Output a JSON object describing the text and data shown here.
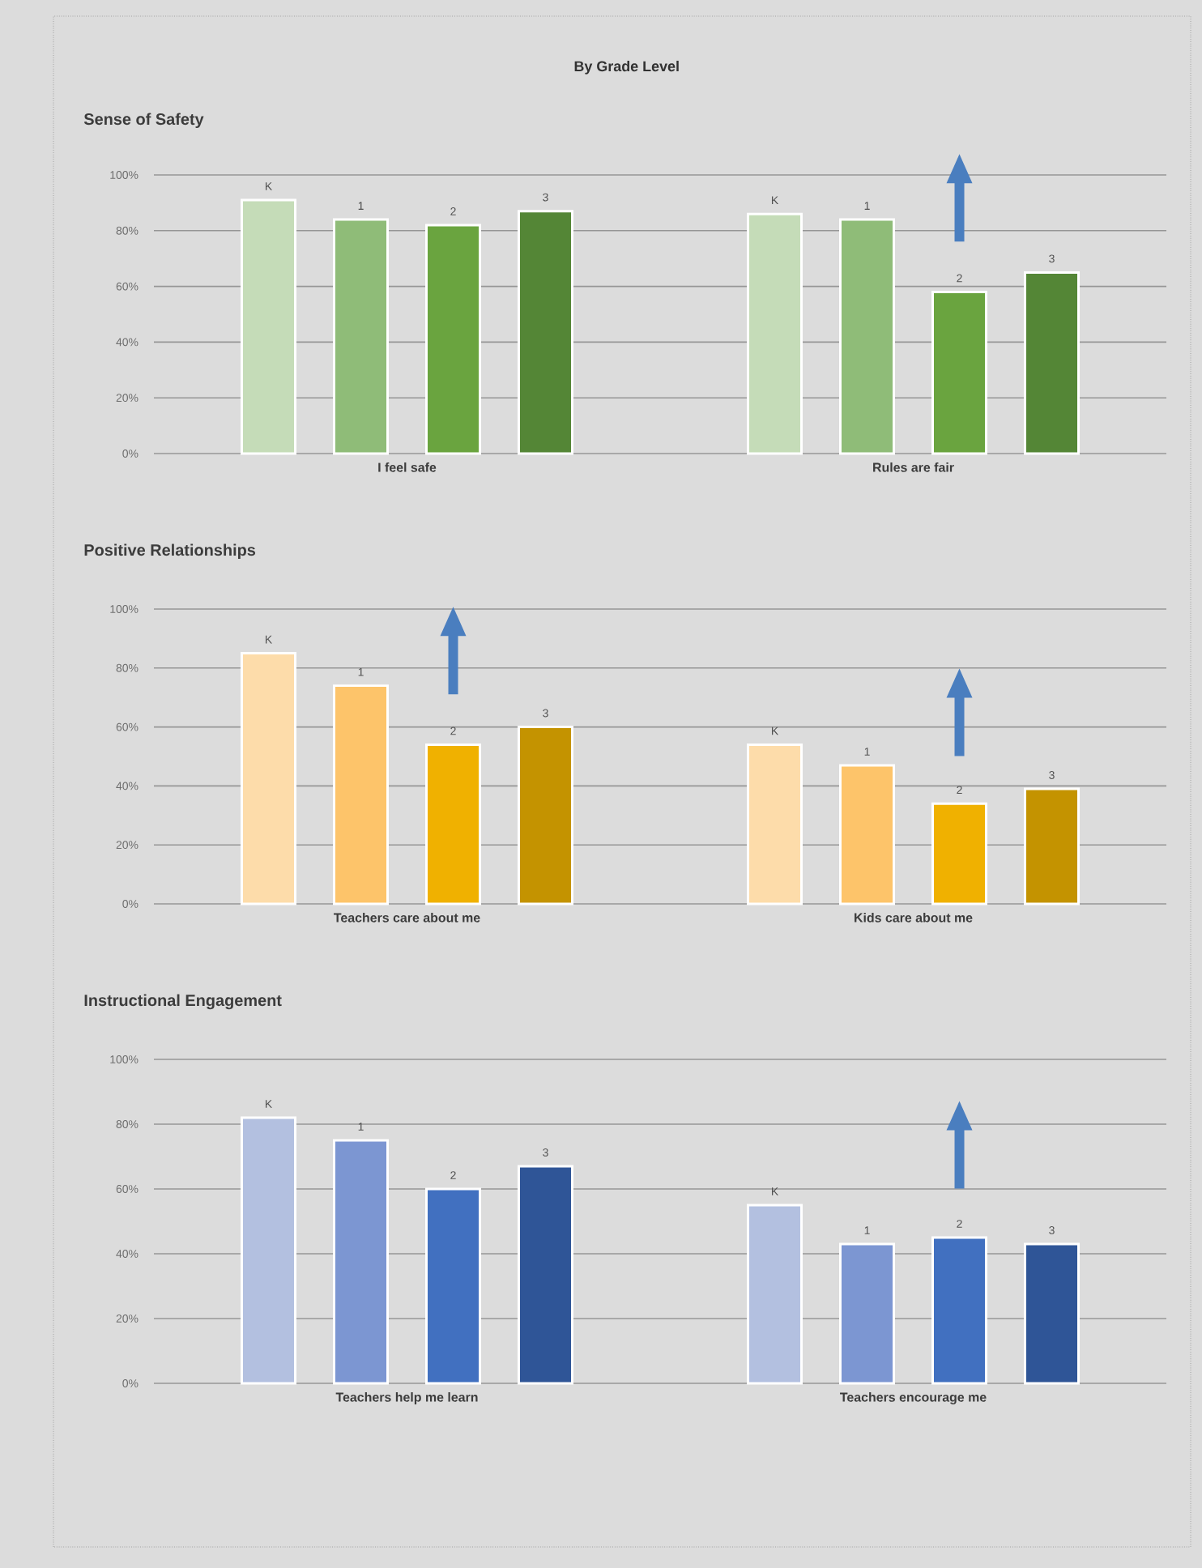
{
  "chart_data": [
    {
      "type": "bar",
      "title": "By Grade Level",
      "subtitle": "Sense of Safety",
      "categories": [
        "I feel safe",
        "Rules are fair"
      ],
      "grid": "y",
      "ylim": [
        0,
        100
      ],
      "yticks": [
        {
          "value": 0,
          "label": "0%"
        },
        {
          "value": 20,
          "label": "20%"
        },
        {
          "value": 40,
          "label": "40%"
        },
        {
          "value": 60,
          "label": "60%"
        },
        {
          "value": 80,
          "label": "80%"
        },
        {
          "value": 100,
          "label": "100%"
        }
      ],
      "series": [
        {
          "name": "K",
          "color": "#c5dcb8",
          "values": [
            91,
            86
          ]
        },
        {
          "name": "1",
          "color": "#8fbc78",
          "values": [
            84,
            84
          ]
        },
        {
          "name": "2",
          "color": "#6aa43f",
          "values": [
            82,
            58
          ]
        },
        {
          "name": "3",
          "color": "#548636",
          "values": [
            87,
            65
          ]
        }
      ]
    },
    {
      "type": "bar",
      "title": "Positive Relationships",
      "categories": [
        "Teachers care about me",
        "Kids care about me"
      ],
      "grid": "y",
      "ylim": [
        0,
        100
      ],
      "yticks": [
        {
          "value": 0,
          "label": "0%"
        },
        {
          "value": 20,
          "label": "20%"
        },
        {
          "value": 40,
          "label": "40%"
        },
        {
          "value": 60,
          "label": "60%"
        },
        {
          "value": 80,
          "label": "80%"
        },
        {
          "value": 100,
          "label": "100%"
        }
      ],
      "series": [
        {
          "name": "K",
          "color": "#fddcaa",
          "values": [
            85,
            54
          ]
        },
        {
          "name": "1",
          "color": "#fdc46a",
          "values": [
            74,
            47
          ]
        },
        {
          "name": "2",
          "color": "#f0b100",
          "values": [
            54,
            34
          ]
        },
        {
          "name": "3",
          "color": "#c49300",
          "values": [
            60,
            39
          ]
        }
      ]
    },
    {
      "type": "bar",
      "title": "Instructional Engagement",
      "categories": [
        "Teachers help me learn",
        "Teachers encourage me"
      ],
      "grid": "y",
      "ylim": [
        0,
        100
      ],
      "yticks": [
        {
          "value": 0,
          "label": "0%"
        },
        {
          "value": 20,
          "label": "20%"
        },
        {
          "value": 40,
          "label": "40%"
        },
        {
          "value": 60,
          "label": "60%"
        },
        {
          "value": 80,
          "label": "80%"
        },
        {
          "value": 100,
          "label": "100%"
        }
      ],
      "series": [
        {
          "name": "K",
          "color": "#b3c0e0",
          "values": [
            82,
            55
          ]
        },
        {
          "name": "1",
          "color": "#7c96d2",
          "values": [
            75,
            43
          ]
        },
        {
          "name": "2",
          "color": "#4170c0",
          "values": [
            60,
            45
          ]
        },
        {
          "name": "3",
          "color": "#2f5597",
          "values": [
            67,
            43
          ]
        }
      ]
    }
  ]
}
